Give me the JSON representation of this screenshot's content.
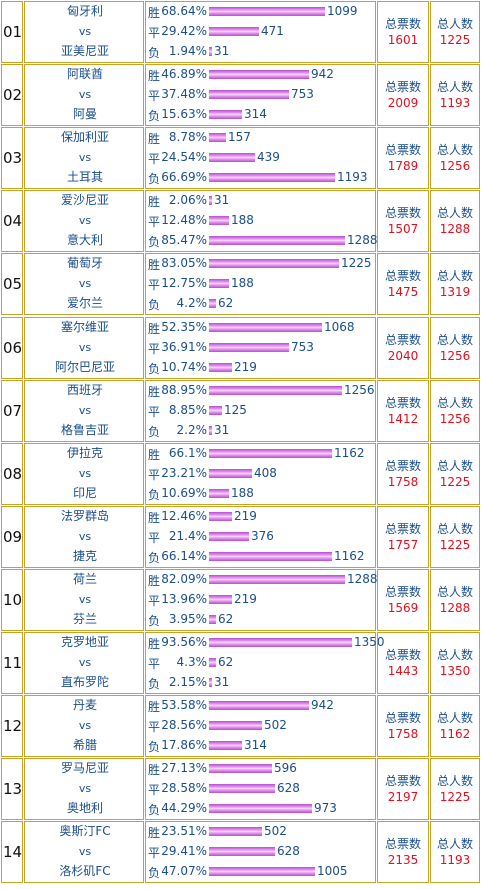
{
  "labels": {
    "vs": "vs",
    "win": "胜",
    "draw": "平",
    "lose": "负",
    "total_votes": "总票数",
    "total_people": "总人数"
  },
  "colors": {
    "team_text": "#1a4e8c",
    "stat_value": "#e0101f",
    "border": "#c9a227",
    "bar": "#e69bef"
  },
  "matches": [
    {
      "num": "01",
      "home": "匈牙利",
      "away": "亚美尼亚",
      "votes": [
        {
          "pct": "68.64%",
          "count": "1099",
          "frac": 0.814
        },
        {
          "pct": "29.42%",
          "count": "471",
          "frac": 0.349
        },
        {
          "pct": "1.94%",
          "count": "31",
          "frac": 0.023
        }
      ],
      "total_votes": "1601",
      "total_people": "1225"
    },
    {
      "num": "02",
      "home": "阿联酋",
      "away": "阿曼",
      "votes": [
        {
          "pct": "46.89%",
          "count": "942",
          "frac": 0.698
        },
        {
          "pct": "37.48%",
          "count": "753",
          "frac": 0.558
        },
        {
          "pct": "15.63%",
          "count": "314",
          "frac": 0.233
        }
      ],
      "total_votes": "2009",
      "total_people": "1193"
    },
    {
      "num": "03",
      "home": "保加利亚",
      "away": "土耳其",
      "votes": [
        {
          "pct": "8.78%",
          "count": "157",
          "frac": 0.116
        },
        {
          "pct": "24.54%",
          "count": "439",
          "frac": 0.325
        },
        {
          "pct": "66.69%",
          "count": "1193",
          "frac": 0.884
        }
      ],
      "total_votes": "1789",
      "total_people": "1256"
    },
    {
      "num": "04",
      "home": "爱沙尼亚",
      "away": "意大利",
      "votes": [
        {
          "pct": "2.06%",
          "count": "31",
          "frac": 0.023
        },
        {
          "pct": "12.48%",
          "count": "188",
          "frac": 0.139
        },
        {
          "pct": "85.47%",
          "count": "1288",
          "frac": 0.954
        }
      ],
      "total_votes": "1507",
      "total_people": "1288"
    },
    {
      "num": "05",
      "home": "葡萄牙",
      "away": "爱尔兰",
      "votes": [
        {
          "pct": "83.05%",
          "count": "1225",
          "frac": 0.907
        },
        {
          "pct": "12.75%",
          "count": "188",
          "frac": 0.139
        },
        {
          "pct": "4.2%",
          "count": "62",
          "frac": 0.046
        }
      ],
      "total_votes": "1475",
      "total_people": "1319"
    },
    {
      "num": "06",
      "home": "塞尔维亚",
      "away": "阿尔巴尼亚",
      "votes": [
        {
          "pct": "52.35%",
          "count": "1068",
          "frac": 0.791
        },
        {
          "pct": "36.91%",
          "count": "753",
          "frac": 0.558
        },
        {
          "pct": "10.74%",
          "count": "219",
          "frac": 0.162
        }
      ],
      "total_votes": "2040",
      "total_people": "1256"
    },
    {
      "num": "07",
      "home": "西班牙",
      "away": "格鲁吉亚",
      "votes": [
        {
          "pct": "88.95%",
          "count": "1256",
          "frac": 0.93
        },
        {
          "pct": "8.85%",
          "count": "125",
          "frac": 0.093
        },
        {
          "pct": "2.2%",
          "count": "31",
          "frac": 0.023
        }
      ],
      "total_votes": "1412",
      "total_people": "1256"
    },
    {
      "num": "08",
      "home": "伊拉克",
      "away": "印尼",
      "votes": [
        {
          "pct": "66.1%",
          "count": "1162",
          "frac": 0.861
        },
        {
          "pct": "23.21%",
          "count": "408",
          "frac": 0.302
        },
        {
          "pct": "10.69%",
          "count": "188",
          "frac": 0.139
        }
      ],
      "total_votes": "1758",
      "total_people": "1225"
    },
    {
      "num": "09",
      "home": "法罗群岛",
      "away": "捷克",
      "votes": [
        {
          "pct": "12.46%",
          "count": "219",
          "frac": 0.162
        },
        {
          "pct": "21.4%",
          "count": "376",
          "frac": 0.279
        },
        {
          "pct": "66.14%",
          "count": "1162",
          "frac": 0.861
        }
      ],
      "total_votes": "1757",
      "total_people": "1225"
    },
    {
      "num": "10",
      "home": "荷兰",
      "away": "芬兰",
      "votes": [
        {
          "pct": "82.09%",
          "count": "1288",
          "frac": 0.954
        },
        {
          "pct": "13.96%",
          "count": "219",
          "frac": 0.162
        },
        {
          "pct": "3.95%",
          "count": "62",
          "frac": 0.046
        }
      ],
      "total_votes": "1569",
      "total_people": "1288"
    },
    {
      "num": "11",
      "home": "克罗地亚",
      "away": "直布罗陀",
      "votes": [
        {
          "pct": "93.56%",
          "count": "1350",
          "frac": 1.0
        },
        {
          "pct": "4.3%",
          "count": "62",
          "frac": 0.046
        },
        {
          "pct": "2.15%",
          "count": "31",
          "frac": 0.023
        }
      ],
      "total_votes": "1443",
      "total_people": "1350"
    },
    {
      "num": "12",
      "home": "丹麦",
      "away": "希腊",
      "votes": [
        {
          "pct": "53.58%",
          "count": "942",
          "frac": 0.698
        },
        {
          "pct": "28.56%",
          "count": "502",
          "frac": 0.372
        },
        {
          "pct": "17.86%",
          "count": "314",
          "frac": 0.233
        }
      ],
      "total_votes": "1758",
      "total_people": "1162"
    },
    {
      "num": "13",
      "home": "罗马尼亚",
      "away": "奥地利",
      "votes": [
        {
          "pct": "27.13%",
          "count": "596",
          "frac": 0.441
        },
        {
          "pct": "28.58%",
          "count": "628",
          "frac": 0.465
        },
        {
          "pct": "44.29%",
          "count": "973",
          "frac": 0.721
        }
      ],
      "total_votes": "2197",
      "total_people": "1225"
    },
    {
      "num": "14",
      "home": "奥斯汀FC",
      "away": "洛杉矶FC",
      "votes": [
        {
          "pct": "23.51%",
          "count": "502",
          "frac": 0.372
        },
        {
          "pct": "29.41%",
          "count": "628",
          "frac": 0.465
        },
        {
          "pct": "47.07%",
          "count": "1005",
          "frac": 0.744
        }
      ],
      "total_votes": "2135",
      "total_people": "1193"
    }
  ]
}
